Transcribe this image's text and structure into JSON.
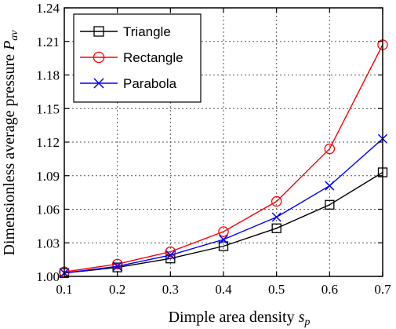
{
  "chart_data": {
    "type": "line",
    "x": [
      0.1,
      0.2,
      0.3,
      0.4,
      0.5,
      0.6,
      0.7
    ],
    "xticks": [
      "0.1",
      "0.2",
      "0.3",
      "0.4",
      "0.5",
      "0.6",
      "0.7"
    ],
    "yticks": [
      "1.00",
      "1.03",
      "1.06",
      "1.09",
      "1.12",
      "1.15",
      "1.18",
      "1.21",
      "1.24"
    ],
    "xlim": [
      0.1,
      0.7
    ],
    "ylim": [
      1.0,
      1.24
    ],
    "xlabel": {
      "text": "Dimple area density ",
      "symbol": "s",
      "subscript": "p"
    },
    "ylabel": {
      "text": "Dimensionless average pressure ",
      "symbol": "P",
      "subscript": "av"
    },
    "grid": true,
    "legend_position": "top-left",
    "series": [
      {
        "name": "Triangle",
        "color": "#000000",
        "marker": "square",
        "values": [
          1.003,
          1.008,
          1.016,
          1.027,
          1.043,
          1.064,
          1.093
        ]
      },
      {
        "name": "Rectangle",
        "color": "#ff0000",
        "marker": "circle",
        "values": [
          1.004,
          1.011,
          1.022,
          1.04,
          1.067,
          1.114,
          1.207
        ]
      },
      {
        "name": "Parabola",
        "color": "#0000ff",
        "marker": "x",
        "values": [
          1.003,
          1.009,
          1.019,
          1.033,
          1.053,
          1.081,
          1.123
        ]
      }
    ]
  }
}
